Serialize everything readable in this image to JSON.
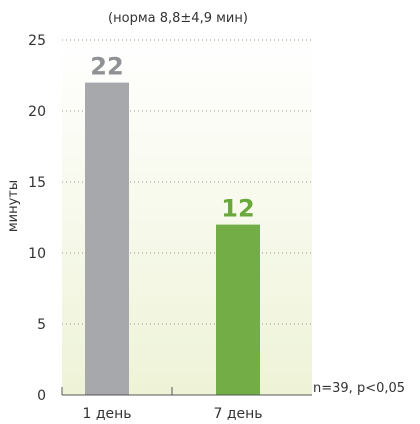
{
  "chart_data": {
    "type": "bar",
    "subtitle": "(норма 8,8±4,9 мин)",
    "ylabel": "минуты",
    "xlabel": "",
    "categories": [
      "1 день",
      "7 день"
    ],
    "values": [
      22,
      12
    ],
    "data_labels": [
      "22",
      "12"
    ],
    "bar_colors": [
      "#a6a8ab",
      "#72ae45"
    ],
    "label_colors": [
      "#8f9194",
      "#6aa83c"
    ],
    "ylim": [
      0,
      25
    ],
    "yticks": [
      0,
      5,
      10,
      15,
      20,
      25
    ],
    "grid": true,
    "annotation": "n=39, p<0,05",
    "background_gradient": [
      "#ffffff",
      "#eef3d7"
    ]
  }
}
